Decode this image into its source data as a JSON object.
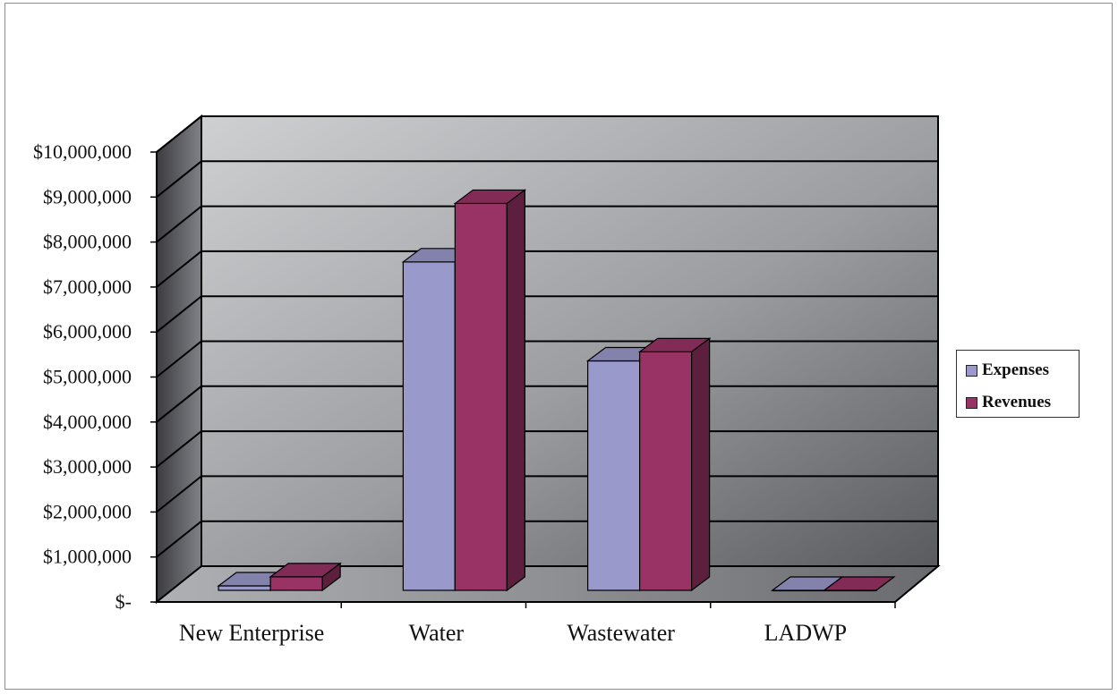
{
  "chart_data": {
    "type": "bar",
    "categories": [
      "New Enterprise",
      "Water",
      "Wastewater",
      "LADWP"
    ],
    "series": [
      {
        "name": "Expenses",
        "color": "#9999cc",
        "values": [
          100000,
          7300000,
          5100000,
          0
        ]
      },
      {
        "name": "Revenues",
        "color": "#993366",
        "values": [
          300000,
          8600000,
          5300000,
          0
        ]
      }
    ],
    "y_ticks": [
      "$-",
      "$1,000,000",
      "$2,000,000",
      "$3,000,000",
      "$4,000,000",
      "$5,000,000",
      "$6,000,000",
      "$7,000,000",
      "$8,000,000",
      "$9,000,000",
      "$10,000,000"
    ],
    "ylim": [
      0,
      10000000
    ],
    "legend_position": "right",
    "grid": true,
    "style": "3d-clustered-column"
  }
}
